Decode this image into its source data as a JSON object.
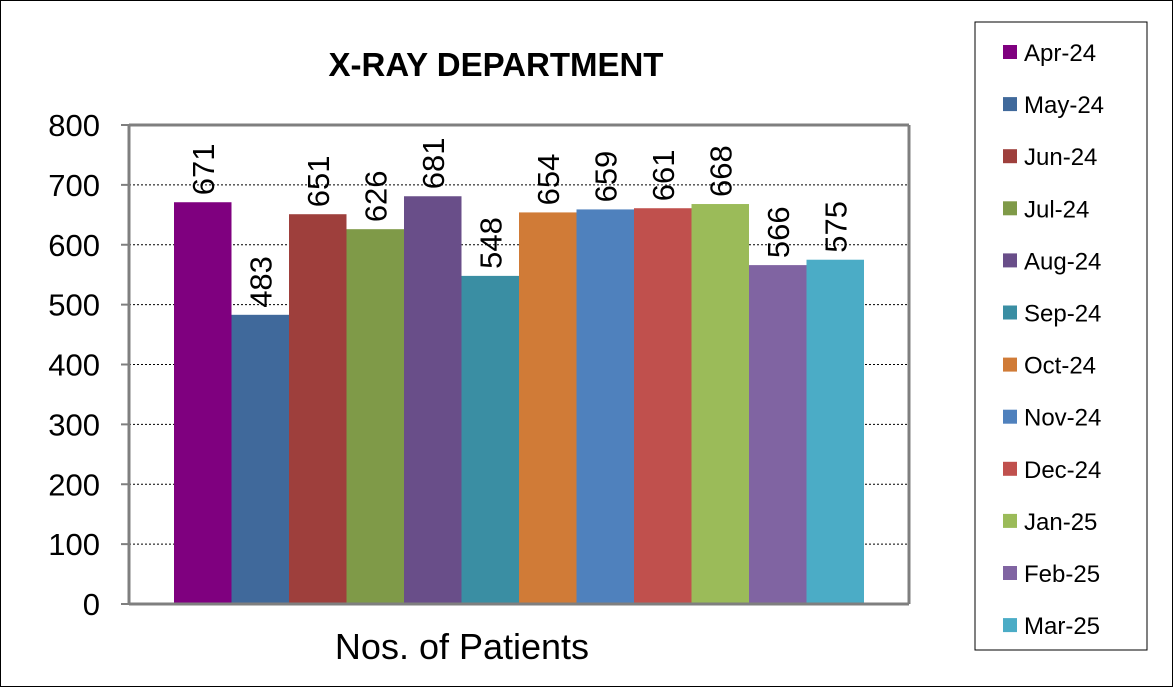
{
  "chart_data": {
    "type": "bar",
    "title": "X-RAY DEPARTMENT",
    "xlabel": "Nos. of Patients",
    "ylabel": "",
    "ylim": [
      0,
      800
    ],
    "yticks": [
      0,
      100,
      200,
      300,
      400,
      500,
      600,
      700,
      800
    ],
    "grid": true,
    "legend_position": "right",
    "categories": [
      "Nos. of Patients"
    ],
    "series": [
      {
        "name": "Apr-24",
        "values": [
          671
        ],
        "color": "#7F007F"
      },
      {
        "name": "May-24",
        "values": [
          483
        ],
        "color": "#40699B"
      },
      {
        "name": "Jun-24",
        "values": [
          651
        ],
        "color": "#9E3F3C"
      },
      {
        "name": "Jul-24",
        "values": [
          626
        ],
        "color": "#7F9A48"
      },
      {
        "name": "Aug-24",
        "values": [
          681
        ],
        "color": "#694E89"
      },
      {
        "name": "Sep-24",
        "values": [
          548
        ],
        "color": "#3A8EA3"
      },
      {
        "name": "Oct-24",
        "values": [
          654
        ],
        "color": "#D07B37"
      },
      {
        "name": "Nov-24",
        "values": [
          659
        ],
        "color": "#4F81BD"
      },
      {
        "name": "Dec-24",
        "values": [
          661
        ],
        "color": "#C0504D"
      },
      {
        "name": "Jan-25",
        "values": [
          668
        ],
        "color": "#9BBB59"
      },
      {
        "name": "Feb-25",
        "values": [
          566
        ],
        "color": "#8064A2"
      },
      {
        "name": "Mar-25",
        "values": [
          575
        ],
        "color": "#4BACC6"
      }
    ]
  }
}
